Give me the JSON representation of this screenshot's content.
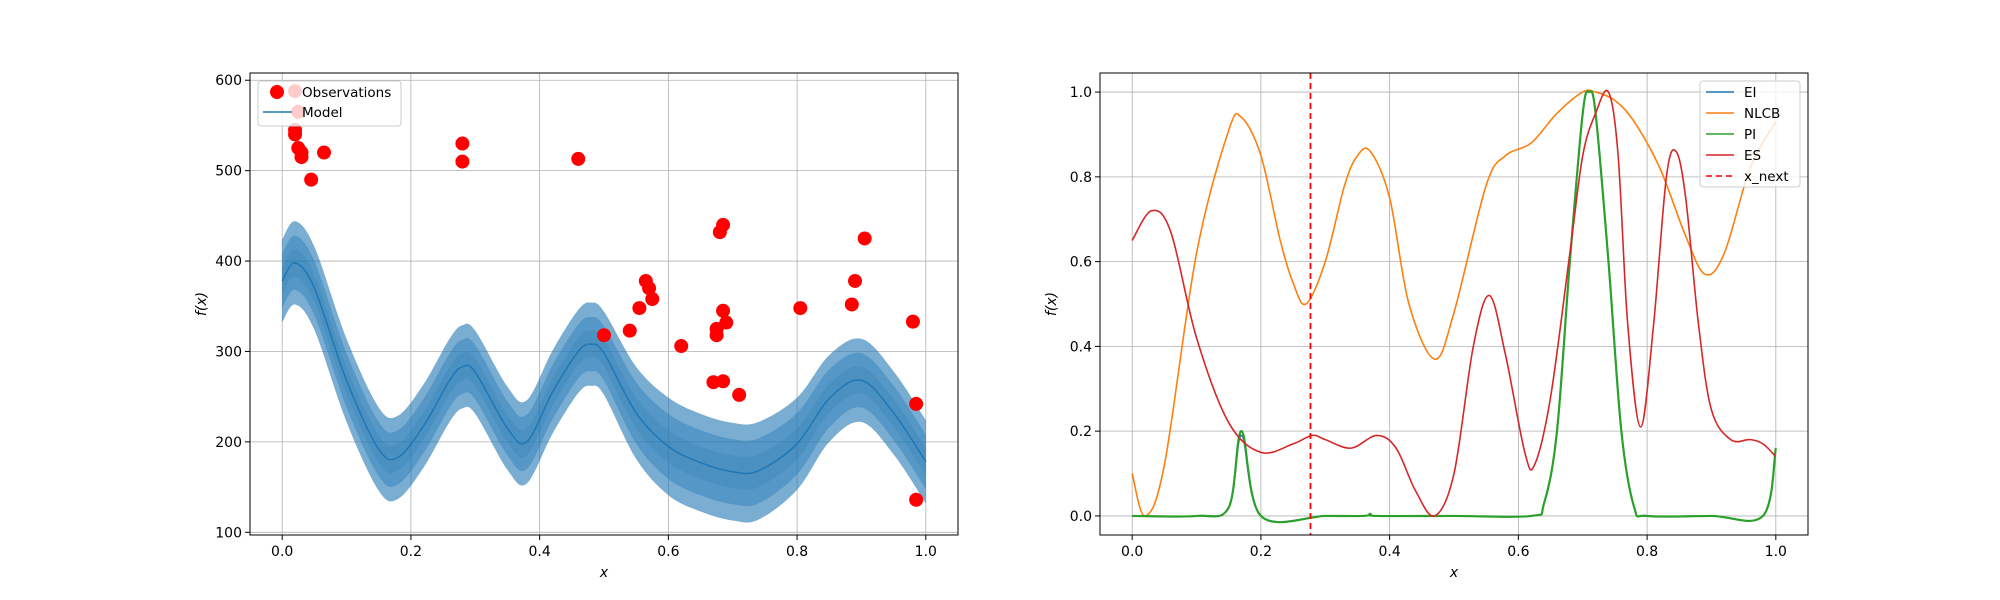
{
  "chart_data": [
    {
      "type": "line",
      "name": "gp-model-plot",
      "xlabel": "x",
      "ylabel": "f(x)",
      "xlim": [
        -0.05,
        1.05
      ],
      "ylim": [
        97,
        608
      ],
      "xticks": [
        0.0,
        0.2,
        0.4,
        0.6,
        0.8,
        1.0
      ],
      "xtick_labels": [
        "0.0",
        "0.2",
        "0.4",
        "0.6",
        "0.8",
        "1.0"
      ],
      "yticks": [
        100,
        200,
        300,
        400,
        500,
        600
      ],
      "ytick_labels": [
        "100",
        "200",
        "300",
        "400",
        "500",
        "600"
      ],
      "grid": true,
      "legend_position": "top-left",
      "legend": [
        {
          "label": "Observations",
          "marker": "circle",
          "color": "#ff0000"
        },
        {
          "label": "Model",
          "marker": "line",
          "color": "#1f77b4"
        }
      ],
      "model": {
        "color": "#1f77b4",
        "band_color": "#1f77b4",
        "band_opacities": [
          0.2,
          0.4,
          0.6
        ],
        "x": [
          0.0,
          0.02,
          0.05,
          0.1,
          0.15,
          0.18,
          0.22,
          0.26,
          0.28,
          0.3,
          0.35,
          0.38,
          0.42,
          0.46,
          0.48,
          0.5,
          0.55,
          0.6,
          0.65,
          0.7,
          0.74,
          0.8,
          0.85,
          0.9,
          0.95,
          1.0
        ],
        "mean": [
          378,
          398,
          370,
          268,
          192,
          183,
          218,
          268,
          283,
          277,
          215,
          200,
          255,
          300,
          308,
          298,
          232,
          195,
          177,
          167,
          168,
          198,
          248,
          268,
          232,
          178
        ],
        "band_half_widths": [
          [
            15,
            15,
            15,
            15,
            15,
            15,
            15,
            15,
            15,
            15,
            15,
            15,
            15,
            15,
            15,
            15,
            17,
            18,
            18,
            18,
            18,
            17,
            16,
            15,
            15,
            15
          ],
          [
            30,
            30,
            30,
            30,
            30,
            30,
            30,
            30,
            30,
            30,
            30,
            30,
            30,
            30,
            30,
            30,
            34,
            36,
            36,
            36,
            36,
            34,
            32,
            30,
            30,
            30
          ],
          [
            46,
            46,
            46,
            46,
            46,
            46,
            46,
            46,
            46,
            46,
            46,
            46,
            46,
            46,
            46,
            46,
            51,
            54,
            54,
            54,
            54,
            51,
            48,
            46,
            46,
            46
          ]
        ]
      },
      "observations": {
        "color": "#ff0000",
        "x": [
          0.02,
          0.02,
          0.02,
          0.025,
          0.025,
          0.03,
          0.03,
          0.045,
          0.065,
          0.28,
          0.28,
          0.46,
          0.5,
          0.54,
          0.555,
          0.565,
          0.57,
          0.575,
          0.62,
          0.67,
          0.675,
          0.675,
          0.68,
          0.685,
          0.685,
          0.685,
          0.69,
          0.71,
          0.805,
          0.885,
          0.89,
          0.905,
          0.98,
          0.985,
          0.985
        ],
        "y": [
          588,
          545,
          540,
          565,
          525,
          520,
          515,
          490,
          520,
          530,
          510,
          513,
          318,
          323,
          348,
          378,
          370,
          358,
          306,
          266,
          318,
          325,
          432,
          440,
          345,
          267,
          332,
          252,
          348,
          352,
          378,
          425,
          333,
          242,
          136
        ]
      }
    },
    {
      "type": "line",
      "name": "acquisition-plot",
      "xlabel": "x",
      "ylabel": "f(x)",
      "xlim": [
        -0.05,
        1.05
      ],
      "ylim": [
        -0.045,
        1.045
      ],
      "xticks": [
        0.0,
        0.2,
        0.4,
        0.6,
        0.8,
        1.0
      ],
      "xtick_labels": [
        "0.0",
        "0.2",
        "0.4",
        "0.6",
        "0.8",
        "1.0"
      ],
      "yticks": [
        0.0,
        0.2,
        0.4,
        0.6,
        0.8,
        1.0
      ],
      "ytick_labels": [
        "0.0",
        "0.2",
        "0.4",
        "0.6",
        "0.8",
        "1.0"
      ],
      "grid": true,
      "legend_position": "top-right",
      "x_next": {
        "label": "x_next",
        "x": 0.277,
        "color": "#ff0000",
        "style": "dashed"
      },
      "series": [
        {
          "name": "EI",
          "color": "#1f77b4",
          "x": [
            0.0,
            0.1,
            0.15,
            0.17,
            0.2,
            0.3,
            0.36,
            0.37,
            0.38,
            0.5,
            0.62,
            0.64,
            0.66,
            0.68,
            0.7,
            0.71,
            0.72,
            0.74,
            0.76,
            0.78,
            0.8,
            0.9,
            0.98,
            1.0
          ],
          "values": [
            0.0,
            0.0,
            0.02,
            0.19,
            0.0,
            0.0,
            0.0,
            0.005,
            0.0,
            0.0,
            0.0,
            0.03,
            0.2,
            0.6,
            0.95,
            1.0,
            0.95,
            0.6,
            0.2,
            0.02,
            0.0,
            0.0,
            0.0,
            0.16
          ]
        },
        {
          "name": "NLCB",
          "color": "#ff7f0e",
          "x": [
            0.0,
            0.02,
            0.05,
            0.1,
            0.15,
            0.17,
            0.2,
            0.23,
            0.25,
            0.27,
            0.3,
            0.33,
            0.35,
            0.37,
            0.4,
            0.43,
            0.47,
            0.5,
            0.55,
            0.58,
            0.62,
            0.66,
            0.7,
            0.72,
            0.75,
            0.78,
            0.82,
            0.86,
            0.89,
            0.92,
            0.96,
            1.0
          ],
          "values": [
            0.1,
            0.0,
            0.12,
            0.62,
            0.91,
            0.94,
            0.85,
            0.65,
            0.55,
            0.5,
            0.6,
            0.78,
            0.85,
            0.86,
            0.75,
            0.5,
            0.37,
            0.48,
            0.78,
            0.85,
            0.88,
            0.95,
            1.0,
            1.0,
            0.98,
            0.93,
            0.82,
            0.66,
            0.57,
            0.62,
            0.82,
            0.93
          ]
        },
        {
          "name": "PI",
          "color": "#2ca02c",
          "x": [
            0.0,
            0.1,
            0.15,
            0.17,
            0.2,
            0.3,
            0.36,
            0.37,
            0.38,
            0.5,
            0.62,
            0.64,
            0.66,
            0.68,
            0.7,
            0.71,
            0.72,
            0.74,
            0.76,
            0.78,
            0.8,
            0.9,
            0.98,
            1.0
          ],
          "values": [
            0.0,
            0.0,
            0.02,
            0.2,
            0.0,
            0.0,
            0.0,
            0.005,
            0.0,
            0.0,
            0.0,
            0.03,
            0.2,
            0.6,
            0.95,
            1.0,
            0.95,
            0.6,
            0.2,
            0.02,
            0.0,
            0.0,
            0.0,
            0.16
          ]
        },
        {
          "name": "ES",
          "color": "#d62728",
          "x": [
            0.0,
            0.03,
            0.06,
            0.1,
            0.15,
            0.2,
            0.25,
            0.28,
            0.3,
            0.34,
            0.38,
            0.41,
            0.44,
            0.47,
            0.5,
            0.53,
            0.555,
            0.58,
            0.61,
            0.625,
            0.65,
            0.68,
            0.7,
            0.72,
            0.74,
            0.755,
            0.77,
            0.79,
            0.81,
            0.83,
            0.845,
            0.86,
            0.88,
            0.9,
            0.93,
            0.96,
            0.98,
            1.0
          ],
          "values": [
            0.65,
            0.72,
            0.67,
            0.42,
            0.22,
            0.15,
            0.17,
            0.19,
            0.18,
            0.16,
            0.19,
            0.16,
            0.06,
            0.0,
            0.1,
            0.4,
            0.52,
            0.38,
            0.15,
            0.12,
            0.28,
            0.62,
            0.85,
            0.95,
            1.0,
            0.85,
            0.45,
            0.21,
            0.45,
            0.8,
            0.86,
            0.75,
            0.45,
            0.25,
            0.18,
            0.18,
            0.17,
            0.14
          ]
        }
      ]
    }
  ]
}
